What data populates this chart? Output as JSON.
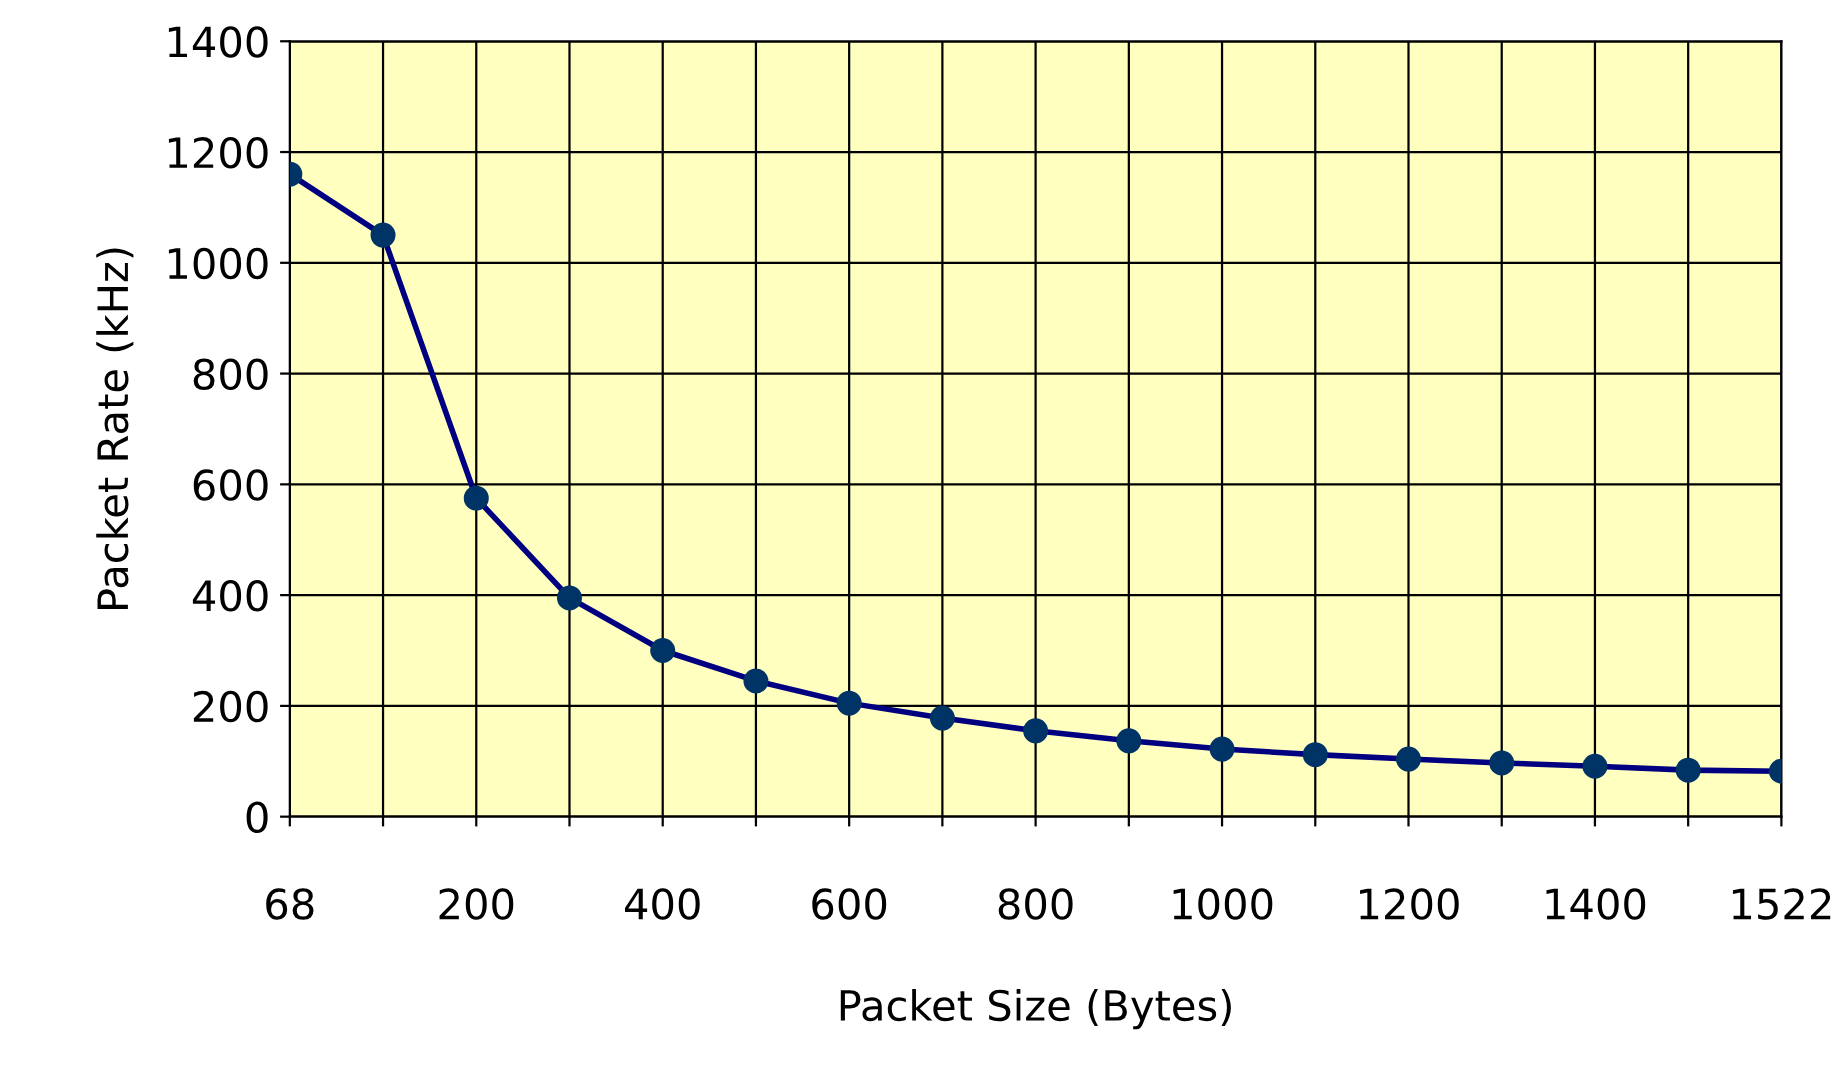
{
  "chart_data": {
    "type": "line",
    "xlabel": "Packet Size (Bytes)",
    "ylabel": "Packet Rate (kHz)",
    "categories": [
      "68",
      null,
      "200",
      null,
      "400",
      null,
      "600",
      null,
      "800",
      null,
      "1000",
      null,
      "1200",
      null,
      "1400",
      null,
      "1522"
    ],
    "series": [
      {
        "color": "#000080",
        "values": [
          1160,
          1050,
          575,
          395,
          300,
          245,
          205,
          178,
          155,
          137,
          122,
          112,
          104,
          97,
          91,
          84,
          82
        ]
      }
    ],
    "ylim": [
      0,
      1400
    ],
    "yticks": [
      0,
      200,
      400,
      600,
      800,
      1000,
      1200,
      1400
    ],
    "grid": true,
    "marker": "circle",
    "line_style": "solid",
    "legend": false
  }
}
